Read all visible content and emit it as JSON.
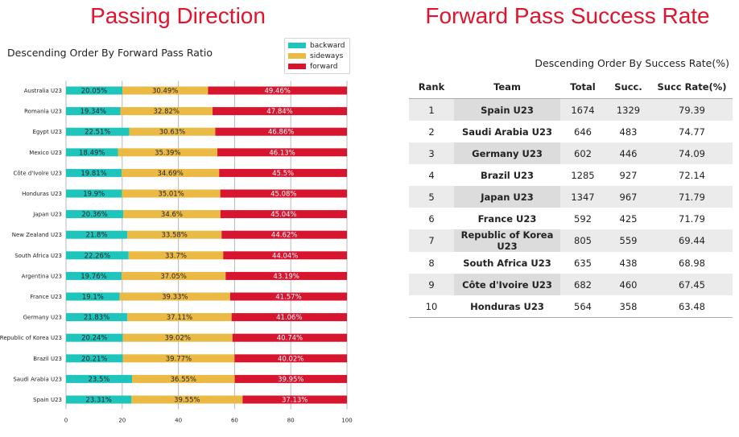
{
  "left_title": "Passing Direction",
  "right_title": "Forward Pass Success Rate",
  "chart_data": {
    "type": "bar",
    "orientation": "horizontal",
    "stacked": true,
    "subtitle": "Descending Order By Forward Pass Ratio",
    "categories": [
      "Australia U23",
      "Romania U23",
      "Egypt U23",
      "Mexico U23",
      "Côte d'Ivoire U23",
      "Honduras U23",
      "Japan U23",
      "New Zealand U23",
      "South Africa U23",
      "Argentina U23",
      "France U23",
      "Germany U23",
      "Republic of Korea U23",
      "Brazil U23",
      "Saudi Arabia U23",
      "Spain U23"
    ],
    "series": [
      {
        "name": "backward",
        "color": "#1ec5bc",
        "values": [
          20.05,
          19.34,
          22.51,
          18.49,
          19.81,
          19.9,
          20.36,
          21.8,
          22.26,
          19.76,
          19.1,
          21.83,
          20.24,
          20.21,
          23.5,
          23.31
        ],
        "labels": [
          "20.05%",
          "19.34%",
          "22.51%",
          "18.49%",
          "19.81%",
          "19.9%",
          "20.36%",
          "21.8%",
          "22.26%",
          "19.76%",
          "19.1%",
          "21.83%",
          "20.24%",
          "20.21%",
          "23.5%",
          "23.31%"
        ]
      },
      {
        "name": "sideways",
        "color": "#ebba45",
        "values": [
          30.49,
          32.82,
          30.63,
          35.39,
          34.69,
          35.01,
          34.6,
          33.58,
          33.7,
          37.05,
          39.33,
          37.11,
          39.02,
          39.77,
          36.55,
          39.55
        ],
        "labels": [
          "30.49%",
          "32.82%",
          "30.63%",
          "35.39%",
          "34.69%",
          "35.01%",
          "34.6%",
          "33.58%",
          "33.7%",
          "37.05%",
          "39.33%",
          "37.11%",
          "39.02%",
          "39.77%",
          "36.55%",
          "39.55%"
        ]
      },
      {
        "name": "forward",
        "color": "#d8152f",
        "values": [
          49.46,
          47.84,
          46.86,
          46.13,
          45.5,
          45.08,
          45.04,
          44.62,
          44.04,
          43.19,
          41.57,
          41.06,
          40.74,
          40.02,
          39.95,
          37.13
        ],
        "labels": [
          "49.46%",
          "47.84%",
          "46.86%",
          "46.13%",
          "45.5%",
          "45.08%",
          "45.04%",
          "44.62%",
          "44.04%",
          "43.19%",
          "41.57%",
          "41.06%",
          "40.74%",
          "40.02%",
          "39.95%",
          "37.13%"
        ]
      }
    ],
    "xlim": [
      0,
      100
    ],
    "xticks": [
      "0",
      "20",
      "40",
      "60",
      "80",
      "100"
    ],
    "grid": "vertical",
    "legend": "top-right"
  },
  "table": {
    "subtitle": "Descending Order By Success Rate(%)",
    "headers": [
      "Rank",
      "Team",
      "Total",
      "Succ.",
      "Succ Rate(%)"
    ],
    "rows": [
      [
        "1",
        "Spain U23",
        "1674",
        "1329",
        "79.39"
      ],
      [
        "2",
        "Saudi Arabia U23",
        "646",
        "483",
        "74.77"
      ],
      [
        "3",
        "Germany U23",
        "602",
        "446",
        "74.09"
      ],
      [
        "4",
        "Brazil U23",
        "1285",
        "927",
        "72.14"
      ],
      [
        "5",
        "Japan U23",
        "1347",
        "967",
        "71.79"
      ],
      [
        "6",
        "France U23",
        "592",
        "425",
        "71.79"
      ],
      [
        "7",
        "Republic of Korea U23",
        "805",
        "559",
        "69.44"
      ],
      [
        "8",
        "South Africa U23",
        "635",
        "438",
        "68.98"
      ],
      [
        "9",
        "Côte d'Ivoire U23",
        "682",
        "460",
        "67.45"
      ],
      [
        "10",
        "Honduras U23",
        "564",
        "358",
        "63.48"
      ]
    ]
  }
}
